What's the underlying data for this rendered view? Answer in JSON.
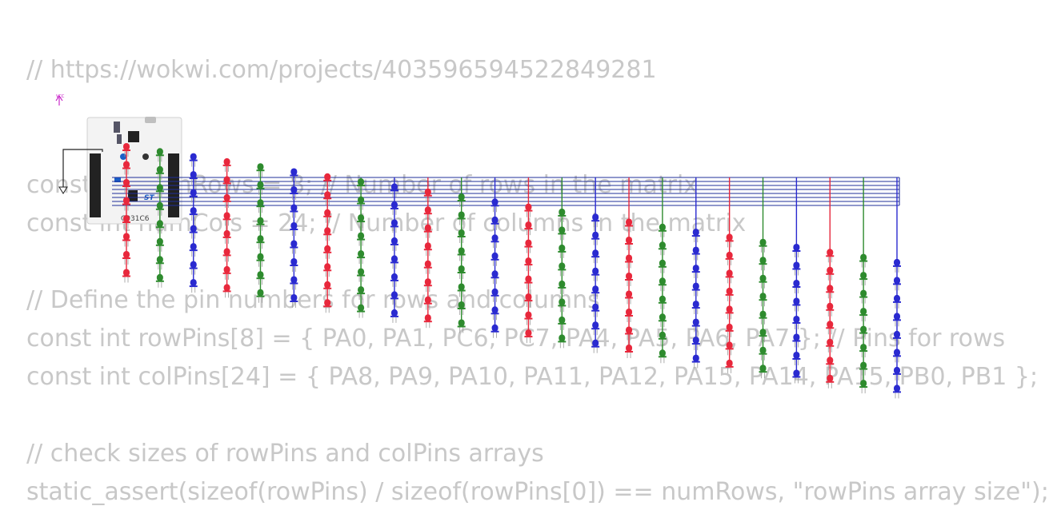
{
  "code_lines": [
    "// https://wokwi.com/projects/403596594522849281",
    "const int numRows = 8; // Number of rows in the matrix",
    "const int numCols = 24; // Number of columns in the matrix",
    "// Define the pin numbers for rows and columns",
    "const int rowPins[8] = { PA0, PA1, PC6, PC7, PA4, PA5, PA6, PA7 }; // Pins for rows",
    "const int colPins[24] = { PA8, PA9, PA10, PA11, PA12, PA15, PA14, PA15, PB0, PB1 };",
    "// check sizes of rowPins and colPins arrays",
    "static_assert(sizeof(rowPins) / sizeof(rowPins[0]) == numRows, \"rowPins array size\");"
  ],
  "board": {
    "label": "C031C6",
    "brand": "ST"
  },
  "vcc_label": "VCC",
  "colors": {
    "red": "#e8283c",
    "green": "#2e8b2e",
    "blue": "#2a2ad0",
    "wire_blue": "#1f2f9a",
    "code_text": "#c8c8c8",
    "vcc": "#c000c0"
  },
  "led_columns": [
    {
      "color": "red"
    },
    {
      "color": "green"
    },
    {
      "color": "blue"
    },
    {
      "color": "red"
    },
    {
      "color": "green"
    },
    {
      "color": "blue"
    },
    {
      "color": "red"
    },
    {
      "color": "green"
    },
    {
      "color": "blue"
    },
    {
      "color": "red"
    },
    {
      "color": "green"
    },
    {
      "color": "blue"
    },
    {
      "color": "red"
    },
    {
      "color": "green"
    },
    {
      "color": "blue"
    },
    {
      "color": "red"
    },
    {
      "color": "green"
    },
    {
      "color": "blue"
    },
    {
      "color": "red"
    },
    {
      "color": "green"
    },
    {
      "color": "blue"
    },
    {
      "color": "red"
    },
    {
      "color": "green"
    },
    {
      "color": "blue"
    }
  ]
}
